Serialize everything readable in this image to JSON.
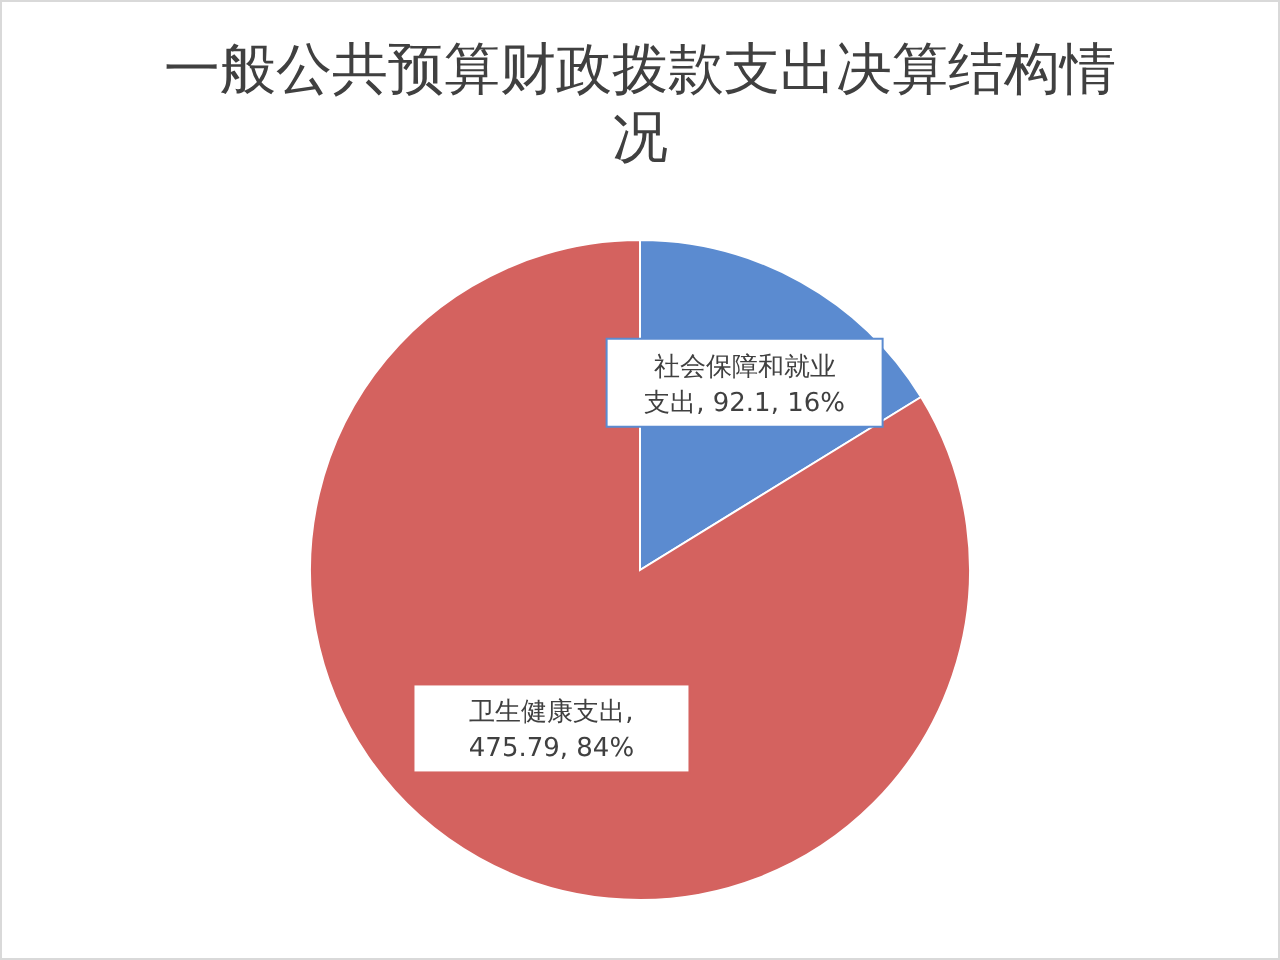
{
  "chart_data": {
    "type": "pie",
    "title": "一般公共预算财政拨款支出决算结构情况",
    "categories": [
      "社会保障和就业支出",
      "卫生健康支出"
    ],
    "values": [
      92.1,
      475.79
    ],
    "colors": [
      "#5b8bd0",
      "#d4625f"
    ],
    "value_labels": [
      ", 92.1, 16%",
      ", 475.79, 84%"
    ]
  }
}
